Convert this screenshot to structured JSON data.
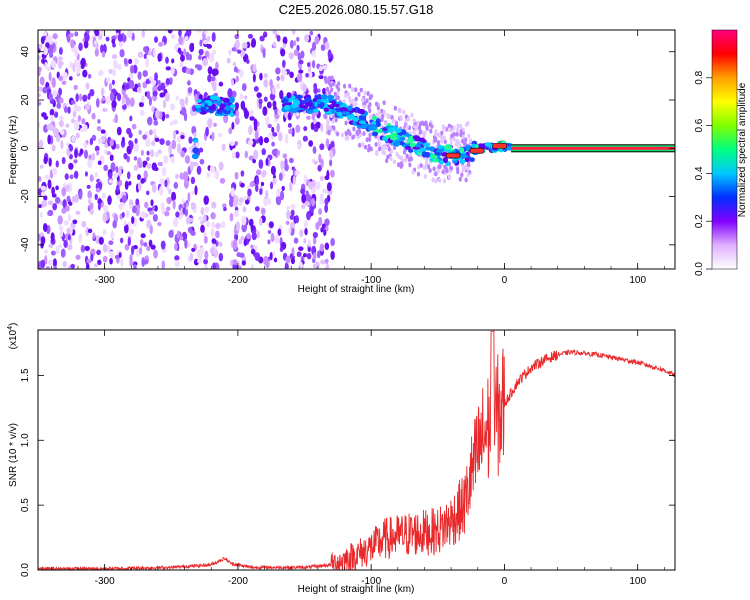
{
  "title": "C2E5.2026.080.15.57.G18",
  "chart_data": [
    {
      "type": "heatmap",
      "xlabel": "Height of straight line (km)",
      "ylabel": "Frequency (Hz)",
      "xlim": [
        -350,
        128
      ],
      "ylim": [
        -50,
        49
      ],
      "xticks": [
        -300,
        -200,
        -100,
        0,
        100
      ],
      "xtick_labels": [
        "-300",
        "-200",
        "-100",
        "0",
        "100"
      ],
      "yticks": [
        -40,
        -20,
        0,
        20,
        40
      ],
      "ytick_labels": [
        "-40",
        "-20",
        "0",
        "20",
        "40"
      ],
      "colorbar": {
        "label": "Normalized spectral amplitude",
        "range": [
          0,
          1
        ],
        "ticks": [
          0.0,
          0.2,
          0.4,
          0.6,
          0.8
        ],
        "tick_labels": [
          "0.0",
          "0.2",
          "0.4",
          "0.6",
          "0.8"
        ],
        "colors": [
          "#ffffff",
          "#e0b0ff",
          "#8000ff",
          "#0030ff",
          "#00c8ff",
          "#00ff80",
          "#80ff00",
          "#ffff00",
          "#ffa000",
          "#ff0000",
          "#ff0080"
        ]
      },
      "signal_center": [
        {
          "x": -230,
          "y": 18
        },
        {
          "x": -220,
          "y": 18
        },
        {
          "x": -210,
          "y": 17
        },
        {
          "x": -160,
          "y": 19
        },
        {
          "x": -130,
          "y": 18
        },
        {
          "x": -110,
          "y": 13
        },
        {
          "x": -90,
          "y": 7
        },
        {
          "x": -70,
          "y": 2
        },
        {
          "x": -55,
          "y": -1
        },
        {
          "x": -45,
          "y": -3
        },
        {
          "x": -30,
          "y": -2
        },
        {
          "x": -15,
          "y": 0
        },
        {
          "x": 0,
          "y": 1
        },
        {
          "x": 10,
          "y": 0
        },
        {
          "x": 128,
          "y": 0
        }
      ],
      "grid": false
    },
    {
      "type": "line",
      "xlabel": "Height of straight line (km)",
      "ylabel": "SNR (10 * v/v)",
      "y_multiplier": "(x10",
      "y_multiplier_exp": "4",
      "y_multiplier_close": ")",
      "xlim": [
        -350,
        128
      ],
      "ylim": [
        0,
        1.85
      ],
      "xticks": [
        -300,
        -200,
        -100,
        0,
        100
      ],
      "xtick_labels": [
        "-300",
        "-200",
        "-100",
        "0",
        "100"
      ],
      "yticks": [
        0.0,
        0.5,
        1.0,
        1.5
      ],
      "ytick_labels": [
        "0.0",
        "0.5",
        "1.0",
        "1.5"
      ],
      "color": "#e8282a",
      "series": [
        {
          "x": [
            -350,
            -300,
            -250,
            -220,
            -210,
            -205,
            -190,
            -150,
            -130,
            -110,
            -100,
            -90,
            -80,
            -70,
            -60,
            -50,
            -40,
            -30,
            -25,
            -20,
            -15,
            -10,
            -5,
            0,
            10,
            20,
            30,
            40,
            50,
            60,
            70,
            80,
            90,
            100,
            110,
            120,
            128
          ],
          "y": [
            0.01,
            0.01,
            0.02,
            0.04,
            0.09,
            0.05,
            0.02,
            0.02,
            0.04,
            0.12,
            0.17,
            0.24,
            0.26,
            0.28,
            0.29,
            0.3,
            0.38,
            0.5,
            0.72,
            0.9,
            1.05,
            1.12,
            1.18,
            1.28,
            1.45,
            1.56,
            1.62,
            1.66,
            1.68,
            1.67,
            1.66,
            1.64,
            1.62,
            1.6,
            1.57,
            1.54,
            1.5
          ]
        }
      ],
      "grid": false
    }
  ]
}
